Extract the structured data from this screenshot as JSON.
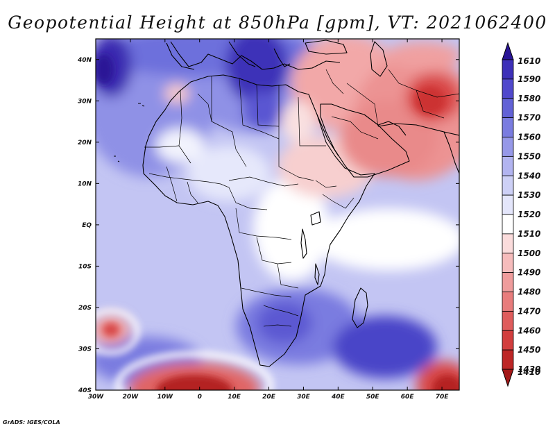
{
  "title": "Geopotential Height at 850hPa [gpm], VT: 2021062400",
  "footer": "GrADS: IGES/COLA",
  "map": {
    "region": "Africa and Middle East",
    "variable": "Geopotential Height at 850hPa",
    "units": "gpm",
    "valid_time": "2021062400",
    "lon_range": [
      -30,
      75
    ],
    "lat_range": [
      -40,
      45
    ],
    "lat_labels": [
      "40N",
      "30N",
      "20N",
      "10N",
      "EQ",
      "10S",
      "20S",
      "30S",
      "40S"
    ],
    "lon_labels": [
      "30W",
      "20W",
      "10W",
      "0",
      "10E",
      "20E",
      "30E",
      "40E",
      "50E",
      "60E",
      "70E"
    ]
  },
  "colorbar": {
    "levels": [
      "1610",
      "1590",
      "1580",
      "1570",
      "1560",
      "1550",
      "1540",
      "1530",
      "1520",
      "1510",
      "1500",
      "1490",
      "1480",
      "1470",
      "1460",
      "1450",
      "1430",
      "1410"
    ],
    "colors": [
      "#2a1596",
      "#3d30b8",
      "#5048cc",
      "#6262d6",
      "#7a7ce0",
      "#9698e8",
      "#b2b4f0",
      "#cdd0f6",
      "#e4e6fb",
      "#ffffff",
      "#fbdcdc",
      "#f6bcbc",
      "#ef9c9c",
      "#e87c7c",
      "#df5c5c",
      "#d23e3e",
      "#bd2626",
      "#a31818"
    ]
  },
  "colors": {
    "high": "#2a1596",
    "neutral": "#ffffff",
    "low": "#a31818",
    "ocean_base": "#c3c5f3"
  }
}
